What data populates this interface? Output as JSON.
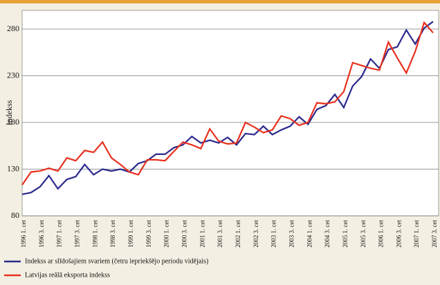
{
  "chart_data": {
    "type": "line",
    "y_label": "Indekss",
    "categories": [
      "1996 1. cet",
      null,
      "1996 3. cet",
      null,
      "1997 1. cet",
      null,
      "1997 3. cet",
      null,
      "1998 1. cet",
      null,
      "1998 3. cet",
      null,
      "1999 1. cet",
      null,
      "1999 3. cet",
      null,
      "2000 1. cet",
      null,
      "2000 3. cet",
      null,
      "2001 1. cet",
      null,
      "2001 3. cet",
      null,
      "2002 1. cet",
      null,
      "2002 3. cet",
      null,
      "2003 1. cet",
      null,
      "2003 3. cet",
      null,
      "2004 1. cet",
      null,
      "2004 3. cet",
      null,
      "2005 1. cet",
      null,
      "2005 3. cet",
      null,
      "2006 1. cet",
      null,
      "2006 3. cet",
      null,
      "2007 1. cet",
      null,
      "2007 3. cet"
    ],
    "series": [
      {
        "name": "Indekss ar slīdošajiem svariem (četru iepriekšējo periodu vidējais)",
        "color": "#2b2a8c",
        "values": [
          103,
          105,
          111,
          123,
          109,
          119,
          122,
          135,
          124,
          130,
          128,
          130,
          127,
          136,
          139,
          146,
          146,
          153,
          156,
          165,
          158,
          161,
          158,
          164,
          156,
          168,
          167,
          176,
          167,
          172,
          176,
          186,
          178,
          194,
          198,
          210,
          196,
          219,
          229,
          248,
          238,
          258,
          261,
          279,
          264,
          281,
          288
        ]
      },
      {
        "name": "Latvijas reālā eksporta indekss",
        "color": "#e8301e",
        "values": [
          113,
          127,
          128,
          131,
          128,
          142,
          139,
          150,
          148,
          159,
          142,
          135,
          127,
          124,
          140,
          140,
          139,
          149,
          159,
          156,
          152,
          173,
          160,
          157,
          158,
          180,
          175,
          169,
          172,
          187,
          184,
          177,
          180,
          201,
          200,
          202,
          213,
          244,
          241,
          238,
          236,
          266,
          249,
          233,
          256,
          287,
          276
        ]
      }
    ],
    "ylim": [
      80,
      300
    ],
    "yticks": [
      80,
      130,
      180,
      230,
      280
    ],
    "grid": true
  }
}
